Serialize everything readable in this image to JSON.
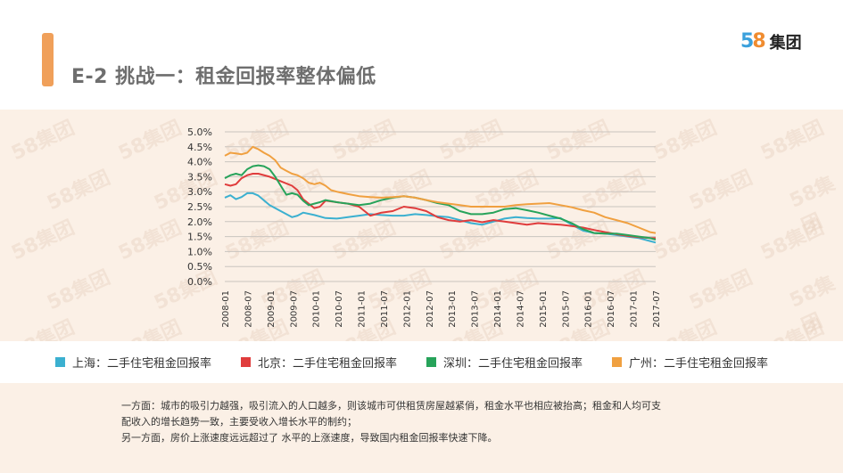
{
  "header": {
    "title": "E-2  挑战一：租金回报率整体偏低",
    "logo_number": "58",
    "logo_text": "集团"
  },
  "watermark_text": "58集团",
  "legend": [
    {
      "label": "上海：二手住宅租金回报率",
      "color": "#3bb0d0"
    },
    {
      "label": "北京：二手住宅租金回报率",
      "color": "#e03c3c"
    },
    {
      "label": "深圳：二手住宅租金回报率",
      "color": "#27a35a"
    },
    {
      "label": "广州：二手住宅租金回报率",
      "color": "#f0a040"
    }
  ],
  "note": {
    "line1": "一方面：城市的吸引力越强，吸引流入的人口越多，则该城市可供租赁房屋越紧俏，租金水平也相应被抬高；租金和人均可支",
    "line2": "配收入的增长趋势一致，主要受收入增长水平的制约；",
    "line3": "另一方面，房价上涨速度远远超过了 水平的上涨速度，导致国内租金回报率快速下降。"
  },
  "chart_data": {
    "type": "line",
    "x_ticks": [
      "2008-01",
      "2008-07",
      "2009-01",
      "2009-07",
      "2010-01",
      "2010-07",
      "2011-01",
      "2011-07",
      "2012-01",
      "2012-07",
      "2013-01",
      "2013-07",
      "2014-01",
      "2014-07",
      "2015-01",
      "2015-07",
      "2016-01",
      "2016-07",
      "2017-01",
      "2017-07"
    ],
    "y_ticks": [
      "0.0%",
      "0.5%",
      "1.0%",
      "1.5%",
      "2.0%",
      "2.5%",
      "3.0%",
      "3.5%",
      "4.0%",
      "4.5%",
      "5.0%"
    ],
    "ylim": [
      0,
      5.0
    ],
    "y_unit": "%",
    "grid": true,
    "legend_position": "bottom",
    "series": [
      {
        "name": "上海：二手住宅租金回报率",
        "color": "#3bb0d0",
        "points": [
          [
            0,
            2.8
          ],
          [
            1,
            2.88
          ],
          [
            2,
            2.75
          ],
          [
            3,
            2.82
          ],
          [
            4,
            2.95
          ],
          [
            5,
            2.95
          ],
          [
            6,
            2.87
          ],
          [
            8,
            2.55
          ],
          [
            10,
            2.35
          ],
          [
            12,
            2.15
          ],
          [
            13,
            2.2
          ],
          [
            14,
            2.3
          ],
          [
            16,
            2.22
          ],
          [
            18,
            2.12
          ],
          [
            20,
            2.1
          ],
          [
            22,
            2.15
          ],
          [
            24,
            2.2
          ],
          [
            26,
            2.25
          ],
          [
            28,
            2.22
          ],
          [
            30,
            2.2
          ],
          [
            32,
            2.2
          ],
          [
            34,
            2.25
          ],
          [
            36,
            2.22
          ],
          [
            38,
            2.18
          ],
          [
            40,
            2.15
          ],
          [
            42,
            2.05
          ],
          [
            44,
            1.95
          ],
          [
            46,
            1.9
          ],
          [
            48,
            2.0
          ],
          [
            50,
            2.1
          ],
          [
            52,
            2.15
          ],
          [
            54,
            2.12
          ],
          [
            56,
            2.1
          ],
          [
            58,
            2.1
          ],
          [
            60,
            2.12
          ],
          [
            62,
            1.9
          ],
          [
            64,
            1.7
          ],
          [
            66,
            1.62
          ],
          [
            68,
            1.6
          ],
          [
            70,
            1.55
          ],
          [
            72,
            1.5
          ],
          [
            74,
            1.45
          ],
          [
            76,
            1.35
          ],
          [
            77,
            1.3
          ]
        ]
      },
      {
        "name": "北京：二手住宅租金回报率",
        "color": "#e03c3c",
        "points": [
          [
            0,
            3.25
          ],
          [
            1,
            3.2
          ],
          [
            2,
            3.25
          ],
          [
            3,
            3.45
          ],
          [
            4,
            3.55
          ],
          [
            5,
            3.6
          ],
          [
            6,
            3.6
          ],
          [
            8,
            3.5
          ],
          [
            10,
            3.35
          ],
          [
            12,
            3.2
          ],
          [
            13,
            3.05
          ],
          [
            14,
            2.75
          ],
          [
            15,
            2.6
          ],
          [
            16,
            2.45
          ],
          [
            17,
            2.5
          ],
          [
            18,
            2.7
          ],
          [
            20,
            2.65
          ],
          [
            22,
            2.6
          ],
          [
            24,
            2.5
          ],
          [
            26,
            2.2
          ],
          [
            28,
            2.3
          ],
          [
            30,
            2.35
          ],
          [
            32,
            2.5
          ],
          [
            34,
            2.45
          ],
          [
            36,
            2.35
          ],
          [
            38,
            2.15
          ],
          [
            40,
            2.05
          ],
          [
            42,
            2.0
          ],
          [
            44,
            2.05
          ],
          [
            46,
            1.98
          ],
          [
            48,
            2.05
          ],
          [
            50,
            2.0
          ],
          [
            52,
            1.95
          ],
          [
            54,
            1.9
          ],
          [
            56,
            1.95
          ],
          [
            58,
            1.92
          ],
          [
            60,
            1.9
          ],
          [
            62,
            1.85
          ],
          [
            64,
            1.8
          ],
          [
            66,
            1.72
          ],
          [
            68,
            1.65
          ],
          [
            70,
            1.58
          ],
          [
            72,
            1.52
          ],
          [
            74,
            1.48
          ],
          [
            76,
            1.45
          ],
          [
            77,
            1.45
          ]
        ]
      },
      {
        "name": "深圳：二手住宅租金回报率",
        "color": "#27a35a",
        "points": [
          [
            0,
            3.45
          ],
          [
            1,
            3.55
          ],
          [
            2,
            3.6
          ],
          [
            3,
            3.55
          ],
          [
            4,
            3.75
          ],
          [
            5,
            3.85
          ],
          [
            6,
            3.88
          ],
          [
            7,
            3.85
          ],
          [
            8,
            3.75
          ],
          [
            9,
            3.5
          ],
          [
            10,
            3.2
          ],
          [
            11,
            2.9
          ],
          [
            12,
            2.95
          ],
          [
            13,
            2.9
          ],
          [
            14,
            2.7
          ],
          [
            15,
            2.55
          ],
          [
            16,
            2.6
          ],
          [
            17,
            2.65
          ],
          [
            18,
            2.72
          ],
          [
            20,
            2.65
          ],
          [
            22,
            2.6
          ],
          [
            24,
            2.55
          ],
          [
            26,
            2.6
          ],
          [
            28,
            2.72
          ],
          [
            30,
            2.8
          ],
          [
            32,
            2.85
          ],
          [
            34,
            2.8
          ],
          [
            36,
            2.72
          ],
          [
            38,
            2.62
          ],
          [
            40,
            2.55
          ],
          [
            42,
            2.35
          ],
          [
            44,
            2.25
          ],
          [
            46,
            2.25
          ],
          [
            48,
            2.3
          ],
          [
            50,
            2.42
          ],
          [
            52,
            2.45
          ],
          [
            54,
            2.38
          ],
          [
            56,
            2.3
          ],
          [
            58,
            2.2
          ],
          [
            60,
            2.1
          ],
          [
            62,
            1.95
          ],
          [
            64,
            1.75
          ],
          [
            66,
            1.62
          ],
          [
            68,
            1.6
          ],
          [
            70,
            1.6
          ],
          [
            72,
            1.55
          ],
          [
            74,
            1.5
          ],
          [
            76,
            1.45
          ],
          [
            77,
            1.4
          ]
        ]
      },
      {
        "name": "广州：二手住宅租金回报率",
        "color": "#f0a040",
        "points": [
          [
            0,
            4.2
          ],
          [
            1,
            4.3
          ],
          [
            2,
            4.28
          ],
          [
            3,
            4.25
          ],
          [
            4,
            4.3
          ],
          [
            5,
            4.5
          ],
          [
            6,
            4.42
          ],
          [
            7,
            4.3
          ],
          [
            8,
            4.2
          ],
          [
            9,
            4.05
          ],
          [
            10,
            3.8
          ],
          [
            11,
            3.7
          ],
          [
            12,
            3.6
          ],
          [
            13,
            3.55
          ],
          [
            14,
            3.45
          ],
          [
            15,
            3.3
          ],
          [
            16,
            3.25
          ],
          [
            17,
            3.3
          ],
          [
            18,
            3.2
          ],
          [
            19,
            3.05
          ],
          [
            20,
            3.0
          ],
          [
            22,
            2.92
          ],
          [
            24,
            2.85
          ],
          [
            26,
            2.82
          ],
          [
            28,
            2.8
          ],
          [
            30,
            2.82
          ],
          [
            32,
            2.85
          ],
          [
            34,
            2.8
          ],
          [
            36,
            2.72
          ],
          [
            38,
            2.65
          ],
          [
            40,
            2.6
          ],
          [
            42,
            2.55
          ],
          [
            44,
            2.5
          ],
          [
            46,
            2.5
          ],
          [
            48,
            2.5
          ],
          [
            50,
            2.5
          ],
          [
            52,
            2.55
          ],
          [
            54,
            2.58
          ],
          [
            56,
            2.6
          ],
          [
            58,
            2.62
          ],
          [
            60,
            2.55
          ],
          [
            62,
            2.48
          ],
          [
            64,
            2.38
          ],
          [
            66,
            2.3
          ],
          [
            68,
            2.15
          ],
          [
            70,
            2.05
          ],
          [
            72,
            1.95
          ],
          [
            74,
            1.8
          ],
          [
            76,
            1.65
          ],
          [
            77,
            1.62
          ]
        ]
      }
    ]
  }
}
